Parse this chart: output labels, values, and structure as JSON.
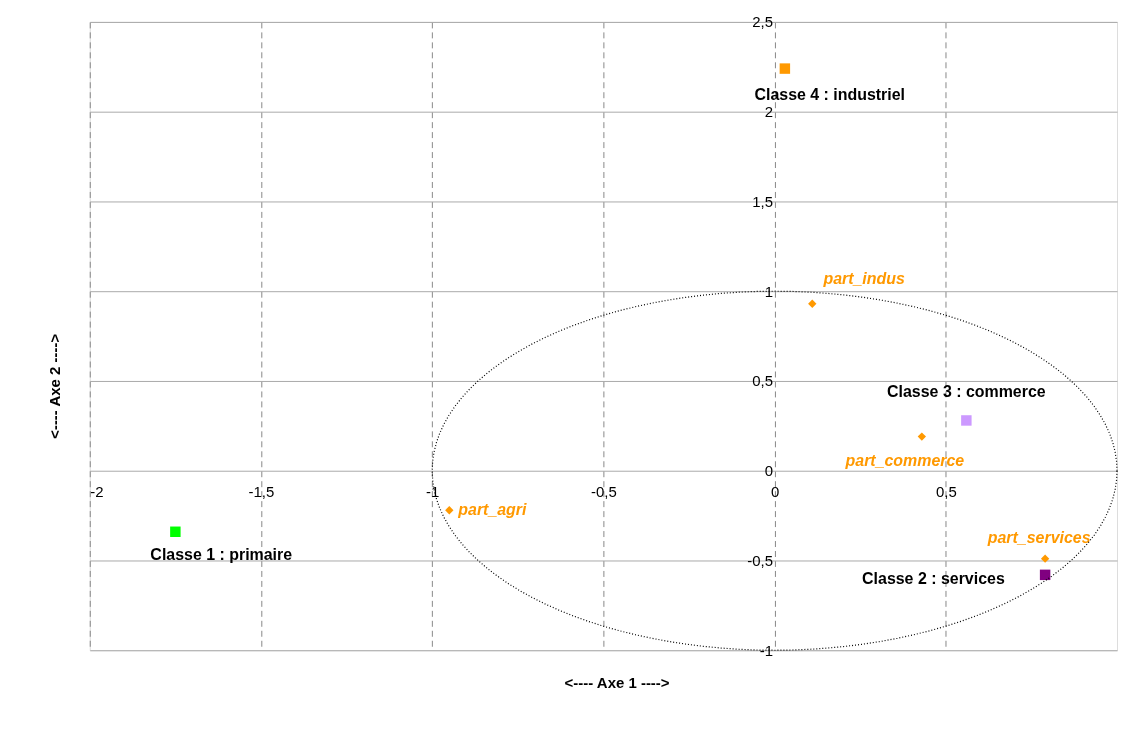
{
  "chart_data": {
    "type": "scatter",
    "xlabel": "<----  Axe 1  ---->",
    "ylabel": "<----  Axe 2  ---->",
    "xlim": [
      -2,
      1
    ],
    "ylim": [
      -1,
      2.5
    ],
    "xticks": [
      -2,
      {
        "value": -1.5,
        "label": "-1,5"
      },
      -1,
      {
        "value": -0.5,
        "label": "-0,5"
      },
      0,
      {
        "value": 0.5,
        "label": "0,5"
      }
    ],
    "yticks": [
      -1,
      {
        "value": -0.5,
        "label": "-0,5"
      },
      0,
      {
        "value": 0.5,
        "label": "0,5"
      },
      1,
      {
        "value": 1.5,
        "label": "1,5"
      },
      2,
      {
        "value": 2.5,
        "label": "2,5"
      }
    ],
    "grid": true,
    "series": [
      {
        "marker": "square",
        "colors": [
          "#00ff00",
          "#800080",
          "#cc99ff",
          "#ff9900"
        ],
        "x": [
          -1.75,
          0.79,
          0.56,
          0.03
        ],
        "values": [
          -0.34,
          -0.58,
          0.28,
          2.24
        ]
      },
      {
        "marker": "diamond",
        "color": "#ff9900",
        "x": [
          -0.95,
          0.11,
          0.43,
          0.79
        ],
        "values": [
          -0.22,
          0.93,
          0.19,
          -0.49
        ]
      }
    ],
    "annotations": [
      {
        "text": "Classe 1 : primaire",
        "x": -1.75,
        "y": -0.34
      },
      {
        "text": "Classe 2 : services",
        "x": 0.79,
        "y": -0.58
      },
      {
        "text": "Classe 3 : commerce",
        "x": 0.56,
        "y": 0.28
      },
      {
        "text": "Classe 4 : industriel",
        "x": 0.03,
        "y": 2.24
      },
      {
        "text": "part_agri",
        "x": -0.95,
        "y": -0.22
      },
      {
        "text": "part_indus",
        "x": 0.11,
        "y": 0.93
      },
      {
        "text": "part_commerce",
        "x": 0.43,
        "y": 0.19
      },
      {
        "text": "part_services",
        "x": 0.79,
        "y": -0.49
      }
    ]
  }
}
